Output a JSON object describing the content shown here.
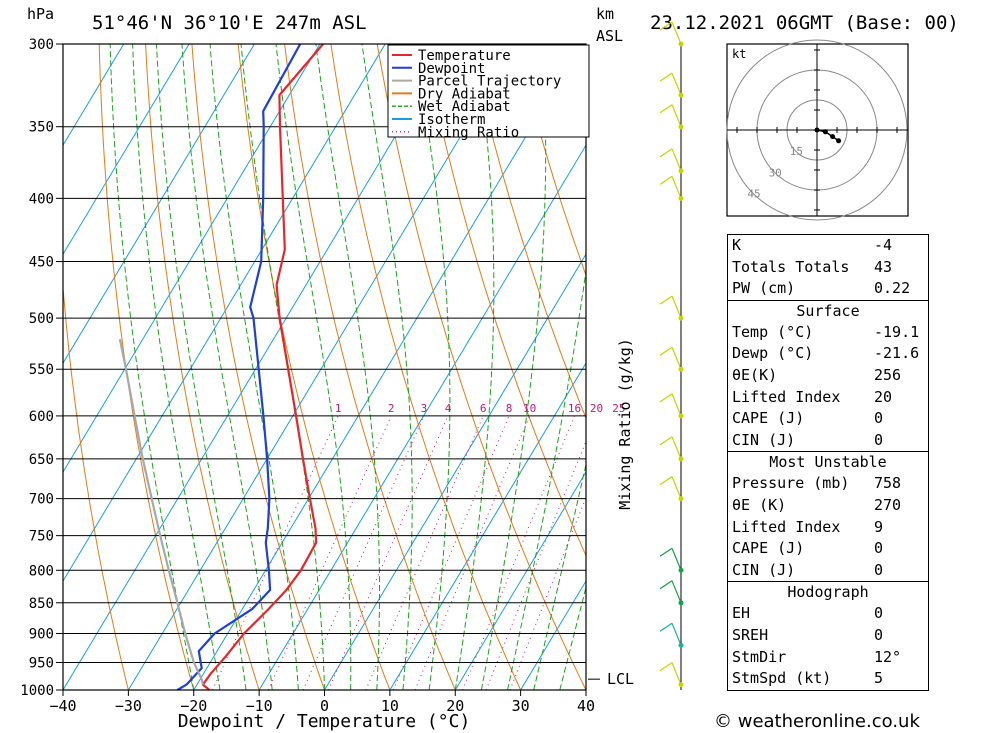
{
  "header": {
    "location": "51°46'N  36°10'E  247m  ASL",
    "datetime": "23.12.2021  06GMT  (Base: 00)",
    "p_unit": "hPa",
    "km_label": "km",
    "asl_label": "ASL"
  },
  "chart_data": {
    "type": "skew-t",
    "xlabel": "Dewpoint / Temperature (°C)",
    "mixing_ratio_axis_label": "Mixing Ratio (g/kg)",
    "pressure_levels": [
      300,
      350,
      400,
      450,
      500,
      550,
      600,
      650,
      700,
      750,
      800,
      850,
      900,
      950,
      1000
    ],
    "temp_ticks": [
      -40,
      -30,
      -20,
      -10,
      0,
      10,
      20,
      30,
      40
    ],
    "temp_range": [
      -40,
      40
    ],
    "pressure_range": [
      300,
      1000
    ],
    "mixing_ratio_labels": [
      1,
      2,
      3,
      4,
      6,
      8,
      10,
      16,
      20,
      25
    ],
    "lcl_label": "LCL",
    "lcl_pressure": 980,
    "legend": [
      {
        "name": "Temperature",
        "color": "#e8252a",
        "style": "solid"
      },
      {
        "name": "Dewpoint",
        "color": "#1f3fd6",
        "style": "solid"
      },
      {
        "name": "Parcel Trajectory",
        "color": "#a8a8a8",
        "style": "solid"
      },
      {
        "name": "Dry Adiabat",
        "color": "#e07b1a",
        "style": "solid"
      },
      {
        "name": "Wet Adiabat",
        "color": "#1aa41a",
        "style": "dashed"
      },
      {
        "name": "Isotherm",
        "color": "#1a9ee0",
        "style": "solid"
      },
      {
        "name": "Mixing Ratio",
        "color": "#c0187a",
        "style": "dotted"
      }
    ],
    "series": [
      {
        "name": "Temperature",
        "points": [
          [
            1000,
            -17.6
          ],
          [
            990,
            -19.1
          ],
          [
            970,
            -18.9
          ],
          [
            940,
            -18.2
          ],
          [
            900,
            -17.5
          ],
          [
            860,
            -16.0
          ],
          [
            830,
            -15.0
          ],
          [
            800,
            -14.6
          ],
          [
            760,
            -14.8
          ],
          [
            740,
            -16.2
          ],
          [
            700,
            -19.8
          ],
          [
            650,
            -24.5
          ],
          [
            600,
            -29.5
          ],
          [
            550,
            -35.0
          ],
          [
            500,
            -41.0
          ],
          [
            470,
            -44.5
          ],
          [
            440,
            -46.5
          ],
          [
            400,
            -51.5
          ],
          [
            350,
            -58.5
          ],
          [
            330,
            -61.5
          ],
          [
            300,
            -59.5
          ]
        ]
      },
      {
        "name": "Dewpoint",
        "points": [
          [
            1000,
            -22.5
          ],
          [
            990,
            -21.6
          ],
          [
            960,
            -20.8
          ],
          [
            930,
            -22.8
          ],
          [
            900,
            -22.0
          ],
          [
            860,
            -18.5
          ],
          [
            830,
            -17.5
          ],
          [
            800,
            -19.5
          ],
          [
            760,
            -22.5
          ],
          [
            740,
            -23.5
          ],
          [
            700,
            -26.0
          ],
          [
            650,
            -30.0
          ],
          [
            600,
            -34.5
          ],
          [
            550,
            -39.5
          ],
          [
            500,
            -45.0
          ],
          [
            490,
            -46.5
          ],
          [
            450,
            -49.0
          ],
          [
            400,
            -54.5
          ],
          [
            350,
            -61.0
          ],
          [
            340,
            -62.5
          ],
          [
            300,
            -63.0
          ]
        ]
      },
      {
        "name": "Parcel Trajectory",
        "points": [
          [
            990,
            -19.1
          ],
          [
            980,
            -19.8
          ],
          [
            950,
            -22.5
          ],
          [
            900,
            -26.5
          ],
          [
            850,
            -30.5
          ],
          [
            800,
            -34.8
          ],
          [
            750,
            -39.3
          ],
          [
            700,
            -44.0
          ],
          [
            650,
            -49.0
          ],
          [
            600,
            -54.2
          ],
          [
            550,
            -59.8
          ],
          [
            520,
            -63.5
          ]
        ]
      }
    ],
    "wind_barbs_note": "wind profile on right"
  },
  "hodograph": {
    "unit": "kt",
    "ring_labels": [
      "15",
      "30",
      "45"
    ],
    "points": [
      [
        0.0,
        0.0
      ],
      [
        1.4,
        -0.3
      ],
      [
        2.6,
        -1.1
      ],
      [
        3.6,
        -1.8
      ]
    ]
  },
  "indices": {
    "k_label": "K",
    "k": "-4",
    "tt_label": "Totals Totals",
    "tt": "43",
    "pw_label": "PW (cm)",
    "pw": "0.22"
  },
  "surface": {
    "title": "Surface",
    "temp_label": "Temp (°C)",
    "temp": "-19.1",
    "dewp_label": "Dewp (°C)",
    "dewp": "-21.6",
    "theta_label": "θE(K)",
    "theta": "256",
    "li_label": "Lifted Index",
    "li": "20",
    "cape_label": "CAPE (J)",
    "cape": "0",
    "cin_label": "CIN (J)",
    "cin": "0"
  },
  "most_unstable": {
    "title": "Most Unstable",
    "pressure_label": "Pressure (mb)",
    "pressure": "758",
    "theta_label": "θE (K)",
    "theta": "270",
    "li_label": "Lifted Index",
    "li": "9",
    "cape_label": "CAPE (J)",
    "cape": "0",
    "cin_label": "CIN (J)",
    "cin": "0"
  },
  "hodo_table": {
    "title": "Hodograph",
    "eh_label": "EH",
    "eh": "0",
    "sreh_label": "SREH",
    "sreh": "0",
    "stmdir_label": "StmDir",
    "stmdir": "12°",
    "stmspd_label": "StmSpd (kt)",
    "stmspd": "5"
  },
  "footer": {
    "copyright": "© weatheronline.co.uk"
  }
}
